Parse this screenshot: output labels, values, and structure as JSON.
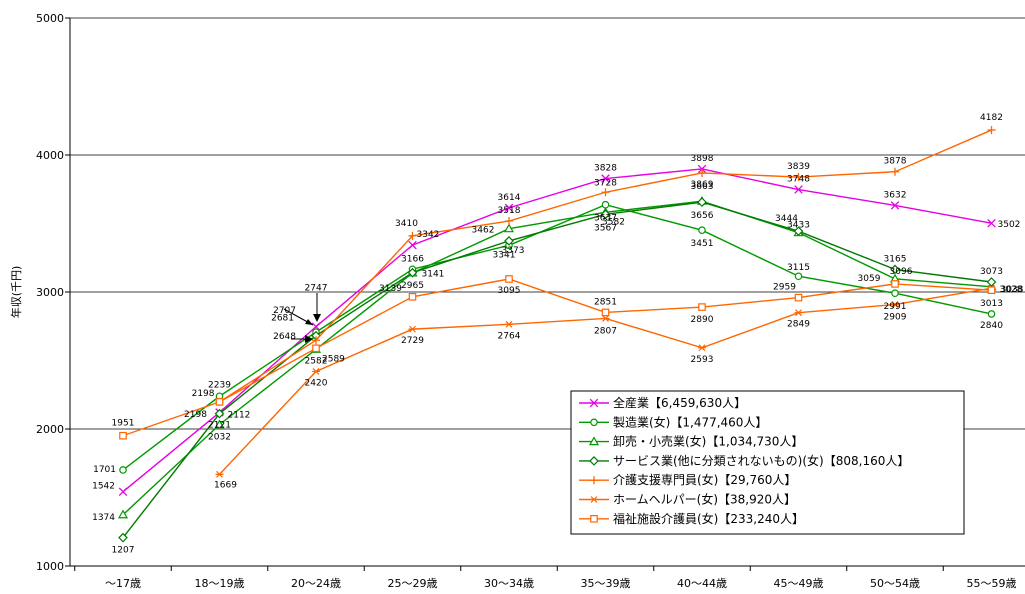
{
  "chart_data": {
    "type": "line",
    "ylabel": "年収(千円)",
    "ylim": [
      1000,
      5000
    ],
    "yticks": [
      "1000",
      "2000",
      "3000",
      "4000",
      "5000"
    ],
    "grid": true,
    "legend_position": "bottom-right",
    "categories": [
      "～17歳",
      "18～19歳",
      "20～24歳",
      "25～29歳",
      "30～34歳",
      "35～39歳",
      "40～44歳",
      "45～49歳",
      "50～54歳",
      "55～59歳"
    ],
    "series": [
      {
        "name": "全産業【6,459,630人】",
        "color": "#E600E6",
        "marker": "x",
        "values": [
          1542,
          2121,
          2747,
          3342,
          3614,
          3828,
          3898,
          3748,
          3632,
          3502
        ]
      },
      {
        "name": "製造業(女)【1,477,460人】",
        "color": "#009900",
        "marker": "circle",
        "values": [
          1701,
          2239,
          2707,
          3166,
          3341,
          3637,
          3451,
          3115,
          2991,
          2840
        ]
      },
      {
        "name": "卸売・小売業(女)【1,034,730人】",
        "color": "#009900",
        "marker": "triangle",
        "values": [
          1374,
          2032,
          2582,
          3139,
          3462,
          3582,
          3663,
          3433,
          3096,
          3038
        ]
      },
      {
        "name": "サービス業(他に分類されないもの)(女)【808,160人】",
        "color": "#007A00",
        "marker": "diamond",
        "values": [
          1207,
          2112,
          2681,
          3141,
          3373,
          3567,
          3656,
          3444,
          3165,
          3073
        ]
      },
      {
        "name": "介護支援専門員(女)【29,760人】",
        "color": "#FF6600",
        "marker": "plus",
        "values": [
          null,
          2198,
          2648,
          3410,
          3518,
          3728,
          3869,
          3839,
          3878,
          4182
        ]
      },
      {
        "name": "ホームヘルパー(女)【38,920人】",
        "color": "#FF6600",
        "marker": "star",
        "values": [
          null,
          1669,
          2420,
          2729,
          2764,
          2807,
          2593,
          2849,
          2909,
          3028
        ]
      },
      {
        "name": "福祉施設介護員(女)【233,240人】",
        "color": "#FF6600",
        "marker": "square",
        "values": [
          1951,
          2198,
          2589,
          2965,
          3095,
          2851,
          2890,
          2959,
          3059,
          3013
        ]
      }
    ]
  }
}
